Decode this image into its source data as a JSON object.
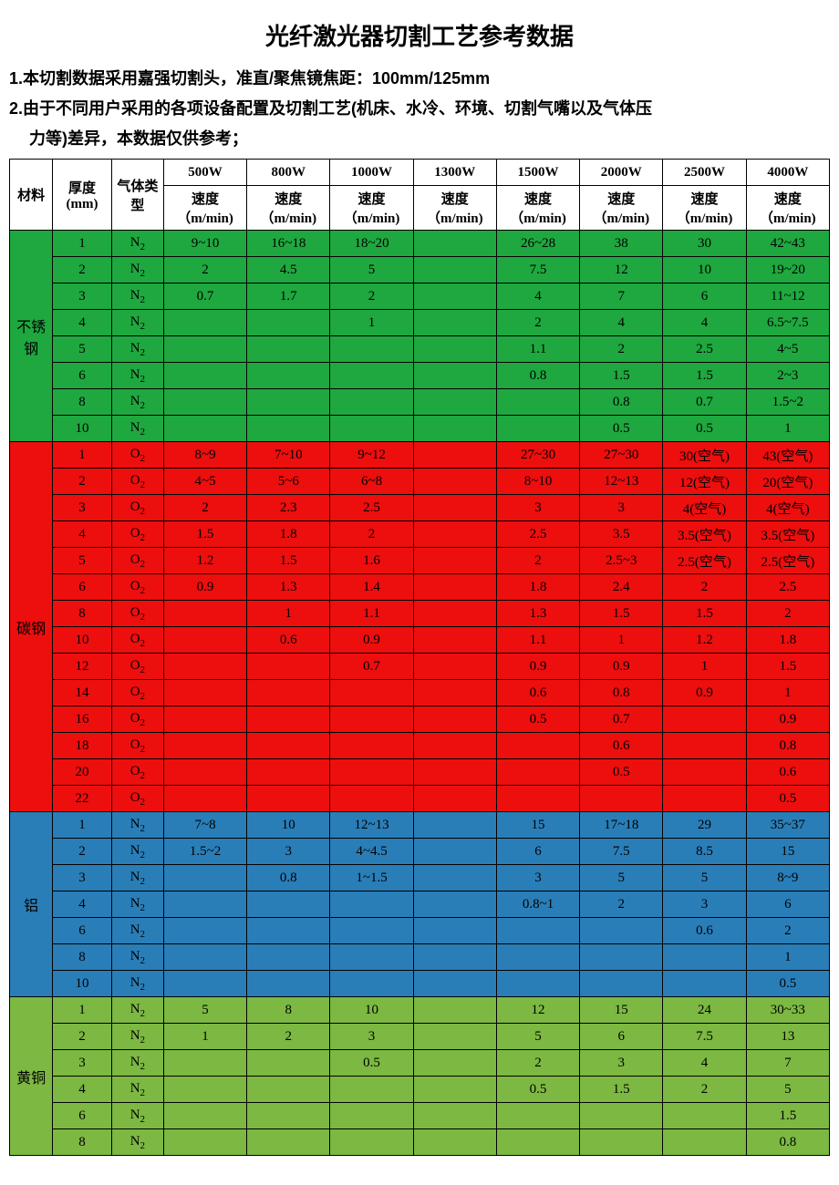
{
  "title": "光纤激光器切割工艺参考数据",
  "notes": [
    "1.本切割数据采用嘉强切割头，准直/聚焦镜焦距：100mm/125mm",
    "2.由于不同用户采用的各项设备配置及切割工艺(机床、水冷、环境、切割气嘴以及气体压",
    "力等)差异，本数据仅供参考；"
  ],
  "headers": {
    "material": "材料",
    "thickness": "厚度(mm)",
    "gas": "气体类型",
    "powers": [
      "500W",
      "800W",
      "1000W",
      "1300W",
      "1500W",
      "2000W",
      "2500W",
      "4000W"
    ],
    "speed_label": "速度（m/min)"
  },
  "colors": {
    "stainless": "#1ea83f",
    "carbon": "#ed0e0e",
    "aluminum": "#2a7eb8",
    "brass": "#7cb842",
    "border": "#000000",
    "text": "#000000"
  },
  "materials": [
    {
      "name": "不锈钢",
      "color": "#1ea83f",
      "rows": [
        {
          "t": "1",
          "g": "N₂",
          "v": [
            "9~10",
            "16~18",
            "18~20",
            "",
            "26~28",
            "38",
            "30",
            "42~43"
          ]
        },
        {
          "t": "2",
          "g": "N₂",
          "v": [
            "2",
            "4.5",
            "5",
            "",
            "7.5",
            "12",
            "10",
            "19~20"
          ]
        },
        {
          "t": "3",
          "g": "N₂",
          "v": [
            "0.7",
            "1.7",
            "2",
            "",
            "4",
            "7",
            "6",
            "11~12"
          ]
        },
        {
          "t": "4",
          "g": "N₂",
          "v": [
            "",
            "",
            "1",
            "",
            "2",
            "4",
            "4",
            "6.5~7.5"
          ]
        },
        {
          "t": "5",
          "g": "N₂",
          "v": [
            "",
            "",
            "",
            "",
            "1.1",
            "2",
            "2.5",
            "4~5"
          ]
        },
        {
          "t": "6",
          "g": "N₂",
          "v": [
            "",
            "",
            "",
            "",
            "0.8",
            "1.5",
            "1.5",
            "2~3"
          ]
        },
        {
          "t": "8",
          "g": "N₂",
          "v": [
            "",
            "",
            "",
            "",
            "",
            "0.8",
            "0.7",
            "1.5~2"
          ]
        },
        {
          "t": "10",
          "g": "N₂",
          "v": [
            "",
            "",
            "",
            "",
            "",
            "0.5",
            "0.5",
            "1"
          ]
        }
      ]
    },
    {
      "name": "碳钢",
      "color": "#ed0e0e",
      "rows": [
        {
          "t": "1",
          "g": "O₂",
          "v": [
            "8~9",
            "7~10",
            "9~12",
            "",
            "27~30",
            "27~30",
            "30(空气)",
            "43(空气)"
          ]
        },
        {
          "t": "2",
          "g": "O₂",
          "v": [
            "4~5",
            "5~6",
            "6~8",
            "",
            "8~10",
            "12~13",
            "12(空气)",
            "20(空气)"
          ]
        },
        {
          "t": "3",
          "g": "O₂",
          "v": [
            "2",
            "2.3",
            "2.5",
            "",
            "3",
            "3",
            "4(空气)",
            "4(空气)"
          ]
        },
        {
          "t": "4",
          "g": "O₂",
          "v": [
            "1.5",
            "1.8",
            "2",
            "",
            "2.5",
            "3.5",
            "3.5(空气)",
            "3.5(空气)"
          ]
        },
        {
          "t": "5",
          "g": "O₂",
          "v": [
            "1.2",
            "1.5",
            "1.6",
            "",
            "2",
            "2.5~3",
            "2.5(空气)",
            "2.5(空气)"
          ]
        },
        {
          "t": "6",
          "g": "O₂",
          "v": [
            "0.9",
            "1.3",
            "1.4",
            "",
            "1.8",
            "2.4",
            "2",
            "2.5"
          ]
        },
        {
          "t": "8",
          "g": "O₂",
          "v": [
            "",
            "1",
            "1.1",
            "",
            "1.3",
            "1.5",
            "1.5",
            "2"
          ]
        },
        {
          "t": "10",
          "g": "O₂",
          "v": [
            "",
            "0.6",
            "0.9",
            "",
            "1.1",
            "1",
            "1.2",
            "1.8"
          ]
        },
        {
          "t": "12",
          "g": "O₂",
          "v": [
            "",
            "",
            "0.7",
            "",
            "0.9",
            "0.9",
            "1",
            "1.5"
          ]
        },
        {
          "t": "14",
          "g": "O₂",
          "v": [
            "",
            "",
            "",
            "",
            "0.6",
            "0.8",
            "0.9",
            "1"
          ]
        },
        {
          "t": "16",
          "g": "O₂",
          "v": [
            "",
            "",
            "",
            "",
            "0.5",
            "0.7",
            "",
            "0.9"
          ]
        },
        {
          "t": "18",
          "g": "O₂",
          "v": [
            "",
            "",
            "",
            "",
            "",
            "0.6",
            "",
            "0.8"
          ]
        },
        {
          "t": "20",
          "g": "O₂",
          "v": [
            "",
            "",
            "",
            "",
            "",
            "0.5",
            "",
            "0.6"
          ]
        },
        {
          "t": "22",
          "g": "O₂",
          "v": [
            "",
            "",
            "",
            "",
            "",
            "",
            "",
            "0.5"
          ]
        }
      ]
    },
    {
      "name": "铝",
      "color": "#2a7eb8",
      "rows": [
        {
          "t": "1",
          "g": "N₂",
          "v": [
            "7~8",
            "10",
            "12~13",
            "",
            "15",
            "17~18",
            "29",
            "35~37"
          ]
        },
        {
          "t": "2",
          "g": "N₂",
          "v": [
            "1.5~2",
            "3",
            "4~4.5",
            "",
            "6",
            "7.5",
            "8.5",
            "15"
          ]
        },
        {
          "t": "3",
          "g": "N₂",
          "v": [
            "",
            "0.8",
            "1~1.5",
            "",
            "3",
            "5",
            "5",
            "8~9"
          ]
        },
        {
          "t": "4",
          "g": "N₂",
          "v": [
            "",
            "",
            "",
            "",
            "0.8~1",
            "2",
            "3",
            "6"
          ]
        },
        {
          "t": "6",
          "g": "N₂",
          "v": [
            "",
            "",
            "",
            "",
            "",
            "",
            "0.6",
            "2"
          ]
        },
        {
          "t": "8",
          "g": "N₂",
          "v": [
            "",
            "",
            "",
            "",
            "",
            "",
            "",
            "1"
          ]
        },
        {
          "t": "10",
          "g": "N₂",
          "v": [
            "",
            "",
            "",
            "",
            "",
            "",
            "",
            "0.5"
          ]
        }
      ]
    },
    {
      "name": "黄铜",
      "color": "#7cb842",
      "rows": [
        {
          "t": "1",
          "g": "N₂",
          "v": [
            "5",
            "8",
            "10",
            "",
            "12",
            "15",
            "24",
            "30~33"
          ]
        },
        {
          "t": "2",
          "g": "N₂",
          "v": [
            "1",
            "2",
            "3",
            "",
            "5",
            "6",
            "7.5",
            "13"
          ]
        },
        {
          "t": "3",
          "g": "N₂",
          "v": [
            "",
            "",
            "0.5",
            "",
            "2",
            "3",
            "4",
            "7"
          ]
        },
        {
          "t": "4",
          "g": "N₂",
          "v": [
            "",
            "",
            "",
            "",
            "0.5",
            "1.5",
            "2",
            "5"
          ]
        },
        {
          "t": "6",
          "g": "N₂",
          "v": [
            "",
            "",
            "",
            "",
            "",
            "",
            "",
            "1.5"
          ]
        },
        {
          "t": "8",
          "g": "N₂",
          "v": [
            "",
            "",
            "",
            "",
            "",
            "",
            "",
            "0.8"
          ]
        }
      ]
    }
  ]
}
